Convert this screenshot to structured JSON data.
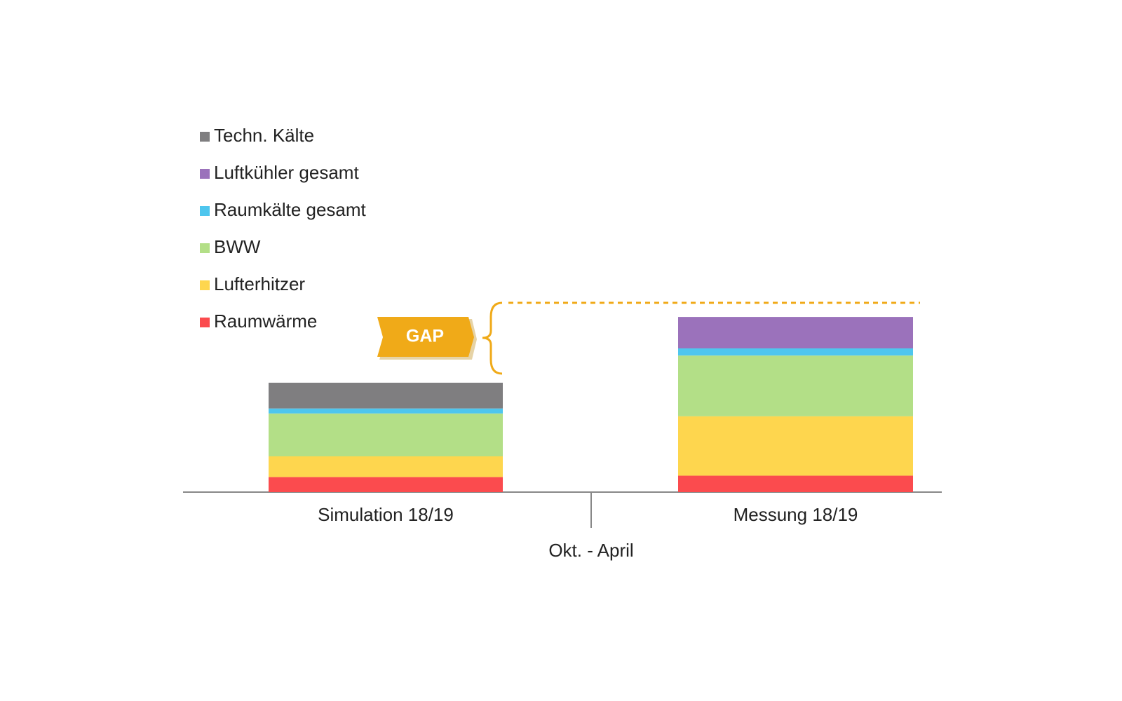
{
  "chart_data": {
    "type": "stacked_bar",
    "categories": [
      "Simulation 18/19",
      "Messung 18/19"
    ],
    "x_label": "Okt. - April",
    "annotation": "GAP",
    "series": [
      {
        "name": "Raumwärme",
        "color": "#fb4b4e",
        "values": [
          21,
          23
        ]
      },
      {
        "name": "Lufterhitzer",
        "color": "#fed64e",
        "values": [
          29,
          83
        ]
      },
      {
        "name": "BWW",
        "color": "#b3df87",
        "values": [
          60,
          85
        ]
      },
      {
        "name": "Raumkälte gesamt",
        "color": "#4ec6ee",
        "values": [
          7,
          10
        ]
      },
      {
        "name": "Luftkühler gesamt",
        "color": "#9b72bb",
        "values": [
          0,
          44
        ]
      },
      {
        "name": "Techn. Kälte",
        "color": "#7f7e80",
        "values": [
          36,
          0
        ]
      }
    ]
  }
}
